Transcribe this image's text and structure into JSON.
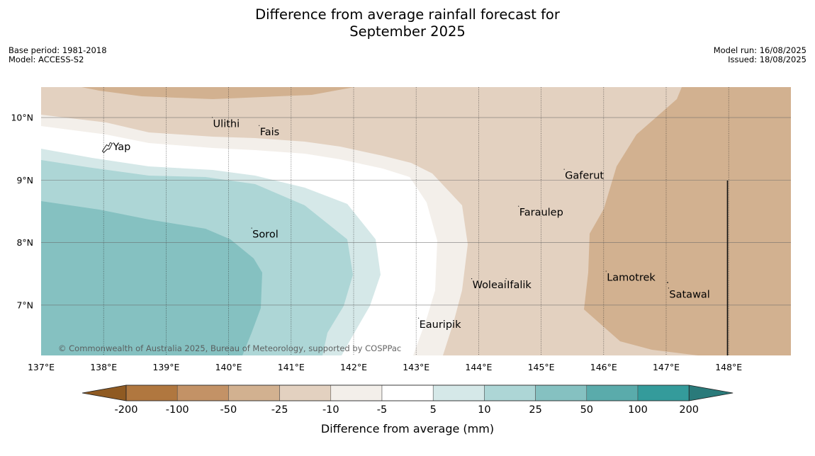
{
  "title": {
    "line1": "Difference from average rainfall forecast for",
    "line2": "September 2025"
  },
  "meta_left": {
    "base_period": "Base period: 1981-2018",
    "model": "Model: ACCESS-S2"
  },
  "meta_right": {
    "model_run": "Model run: 16/08/2025",
    "issued": "Issued: 18/08/2025"
  },
  "map": {
    "lon_range": [
      137.0,
      149.0
    ],
    "lat_range": [
      6.2,
      10.5
    ],
    "lon_ticks": [
      {
        "value": 137,
        "label": "137°E"
      },
      {
        "value": 138,
        "label": "138°E"
      },
      {
        "value": 139,
        "label": "139°E"
      },
      {
        "value": 140,
        "label": "140°E"
      },
      {
        "value": 141,
        "label": "141°E"
      },
      {
        "value": 142,
        "label": "142°E"
      },
      {
        "value": 143,
        "label": "143°E"
      },
      {
        "value": 144,
        "label": "144°E"
      },
      {
        "value": 145,
        "label": "145°E"
      },
      {
        "value": 146,
        "label": "146°E"
      },
      {
        "value": 147,
        "label": "147°E"
      },
      {
        "value": 148,
        "label": "148°E"
      }
    ],
    "lat_ticks": [
      {
        "value": 10,
        "label": "10°N"
      },
      {
        "value": 9,
        "label": "9°N"
      },
      {
        "value": 8,
        "label": "8°N"
      },
      {
        "value": 7,
        "label": "7°N"
      }
    ],
    "islands": [
      {
        "name": "Ulithi",
        "lon": 139.75,
        "lat": 9.9
      },
      {
        "name": "Fais",
        "lon": 140.5,
        "lat": 9.77
      },
      {
        "name": "Yap",
        "lon": 138.15,
        "lat": 9.53
      },
      {
        "name": "Gaferut",
        "lon": 145.38,
        "lat": 9.07
      },
      {
        "name": "Faraulep",
        "lon": 144.65,
        "lat": 8.48
      },
      {
        "name": "Sorol",
        "lon": 140.38,
        "lat": 8.13
      },
      {
        "name": "Lamotrek",
        "lon": 146.05,
        "lat": 7.44
      },
      {
        "name": "Woleai",
        "lon": 143.9,
        "lat": 7.32
      },
      {
        "name": "Ifalik",
        "lon": 144.45,
        "lat": 7.32
      },
      {
        "name": "Satawal",
        "lon": 147.05,
        "lat": 7.17
      },
      {
        "name": "Eauripik",
        "lon": 143.05,
        "lat": 6.69
      }
    ],
    "copyright": "© Commonwealth of Australia 2025, Bureau of Meteorology, supported by COSPPac"
  },
  "colorbar": {
    "label": "Difference from average (mm)",
    "ticks": [
      "-200",
      "-100",
      "-50",
      "-25",
      "-10",
      "-5",
      "5",
      "10",
      "25",
      "50",
      "100",
      "200"
    ],
    "under_color": "#8f5a22",
    "over_color": "#2a7a7a",
    "colors": [
      "#b0773f",
      "#c39266",
      "#d2b190",
      "#e3d1c0",
      "#f3efea",
      "#ffffff",
      "#d5e8e8",
      "#add6d6",
      "#85c1c1",
      "#5aabab",
      "#349b9b"
    ]
  }
}
